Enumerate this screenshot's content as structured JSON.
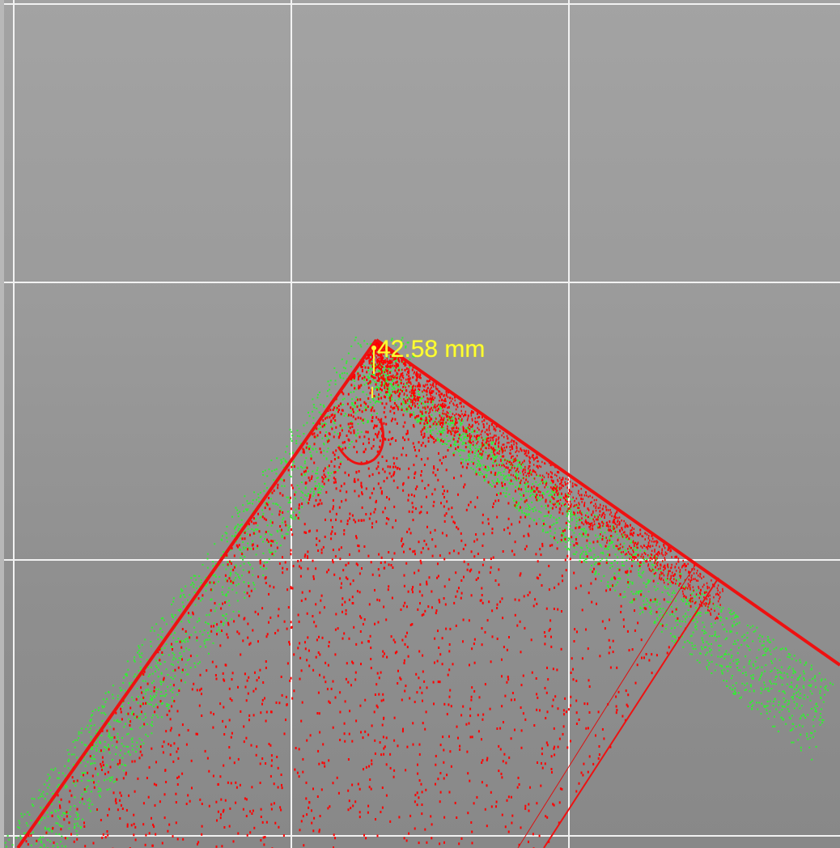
{
  "viewport": {
    "background_top": "#a3a3a3",
    "background_bottom": "#888888",
    "grid_color": "#f2f2f2"
  },
  "point_cloud": {
    "reference_color": "#ff0000",
    "scan_color": "#33ee33",
    "edge_color": "#ee1111"
  },
  "measurement": {
    "label": "42.58 mm",
    "color": "#ffff33"
  }
}
